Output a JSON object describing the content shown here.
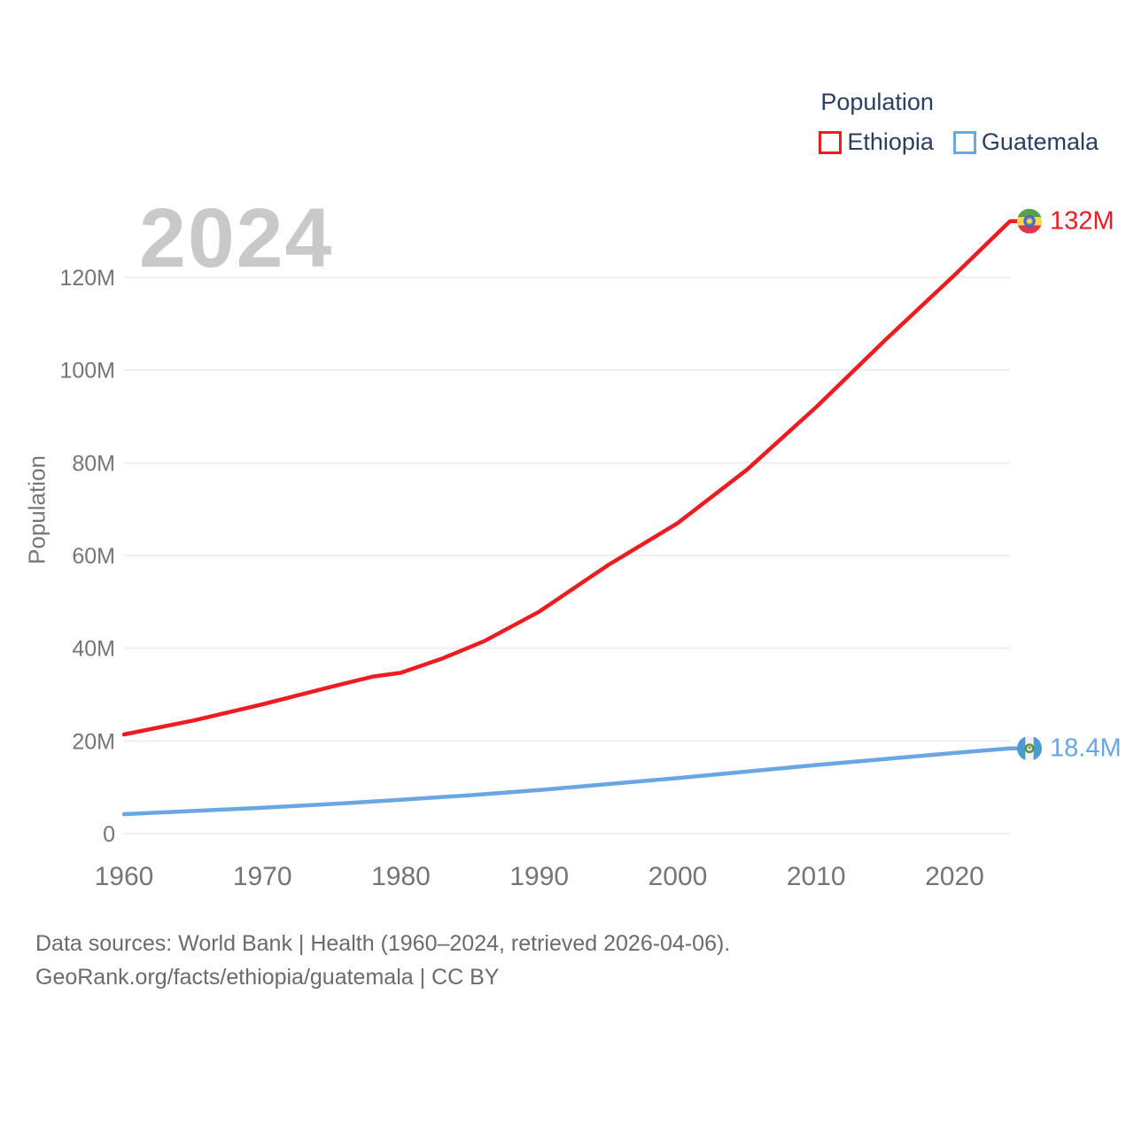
{
  "legend": {
    "title": "Population",
    "items": [
      {
        "label": "Ethiopia",
        "color": "#ee1b21"
      },
      {
        "label": "Guatemala",
        "color": "#68a7e3"
      }
    ]
  },
  "watermark_year": "2024",
  "chart_data": {
    "type": "line",
    "title": "Population",
    "xlabel": "",
    "ylabel": "Population",
    "xlim": [
      1960,
      2024
    ],
    "ylim": [
      0,
      120
    ],
    "grid": "horizontal-only",
    "legend_position": "top-right",
    "x_ticks": [
      1960,
      1970,
      1980,
      1990,
      2000,
      2010,
      2020
    ],
    "y_ticks": [
      {
        "value": 0,
        "label": "0"
      },
      {
        "value": 20,
        "label": "20M"
      },
      {
        "value": 40,
        "label": "40M"
      },
      {
        "value": 60,
        "label": "60M"
      },
      {
        "value": 80,
        "label": "80M"
      },
      {
        "value": 100,
        "label": "100M"
      },
      {
        "value": 120,
        "label": "120M"
      }
    ],
    "series": [
      {
        "name": "Ethiopia",
        "color": "#ee1b21",
        "end_label": "132M",
        "flag_icon": "ethiopia-flag-icon",
        "points": [
          [
            1960,
            21.4
          ],
          [
            1965,
            24.4
          ],
          [
            1970,
            27.9
          ],
          [
            1975,
            31.7
          ],
          [
            1978,
            33.9
          ],
          [
            1980,
            34.7
          ],
          [
            1983,
            37.8
          ],
          [
            1986,
            41.5
          ],
          [
            1990,
            47.9
          ],
          [
            1995,
            58.0
          ],
          [
            2000,
            67.0
          ],
          [
            2005,
            78.5
          ],
          [
            2010,
            92.0
          ],
          [
            2015,
            106.5
          ],
          [
            2020,
            120.5
          ],
          [
            2024,
            132.1
          ]
        ]
      },
      {
        "name": "Guatemala",
        "color": "#68a7e3",
        "end_label": "18.4M",
        "flag_icon": "guatemala-flag-icon",
        "points": [
          [
            1960,
            4.2
          ],
          [
            1965,
            4.9
          ],
          [
            1970,
            5.6
          ],
          [
            1975,
            6.4
          ],
          [
            1980,
            7.3
          ],
          [
            1985,
            8.3
          ],
          [
            1990,
            9.4
          ],
          [
            1995,
            10.7
          ],
          [
            2000,
            12.0
          ],
          [
            2005,
            13.4
          ],
          [
            2010,
            14.8
          ],
          [
            2015,
            16.1
          ],
          [
            2020,
            17.4
          ],
          [
            2024,
            18.4
          ]
        ]
      }
    ]
  },
  "footer": {
    "line1": "Data sources: World Bank | Health (1960–2024, retrieved 2026-04-06).",
    "line2": "GeoRank.org/facts/ethiopia/guatemala | CC BY"
  },
  "colors": {
    "axis_text": "#757575",
    "legend_text": "#2a3f5f",
    "gridline": "#ebebeb",
    "watermark": "#c9c9c9",
    "footer_text": "#6b6b6b"
  }
}
